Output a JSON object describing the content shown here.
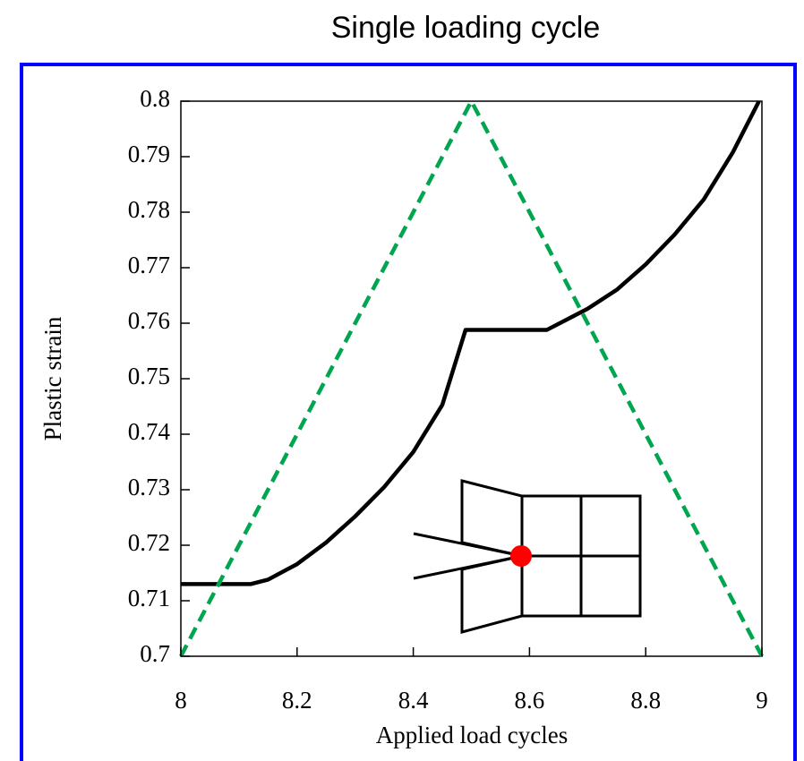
{
  "chart_data": {
    "type": "line",
    "title": "Single loading cycle",
    "xlabel": "Applied load cycles",
    "ylabel": "Plastic strain",
    "xlim": [
      8,
      9
    ],
    "xticks": [
      8,
      8.2,
      8.4,
      8.6,
      8.8,
      9
    ],
    "ylim": [
      0.7,
      0.8
    ],
    "yticks": [
      0.7,
      0.71,
      0.72,
      0.73,
      0.74,
      0.75,
      0.76,
      0.77,
      0.78,
      0.79,
      0.8
    ],
    "series": [
      {
        "color": "#000000",
        "dash": false,
        "x": [
          8,
          8.12,
          8.15,
          8.2,
          8.25,
          8.3,
          8.35,
          8.4,
          8.45,
          8.49,
          8.6,
          8.63,
          8.7,
          8.75,
          8.8,
          8.85,
          8.9,
          8.95,
          8.995
        ],
        "values": [
          0.713,
          0.713,
          0.7138,
          0.7166,
          0.7205,
          0.7252,
          0.7305,
          0.7368,
          0.7453,
          0.7588,
          0.7588,
          0.7588,
          0.7626,
          0.766,
          0.7706,
          0.776,
          0.7823,
          0.7908,
          0.8
        ]
      },
      {
        "color": "#00a550",
        "dash": true,
        "x": [
          8,
          8.5,
          9
        ],
        "values": [
          0.7,
          0.8,
          0.7
        ]
      }
    ]
  }
}
